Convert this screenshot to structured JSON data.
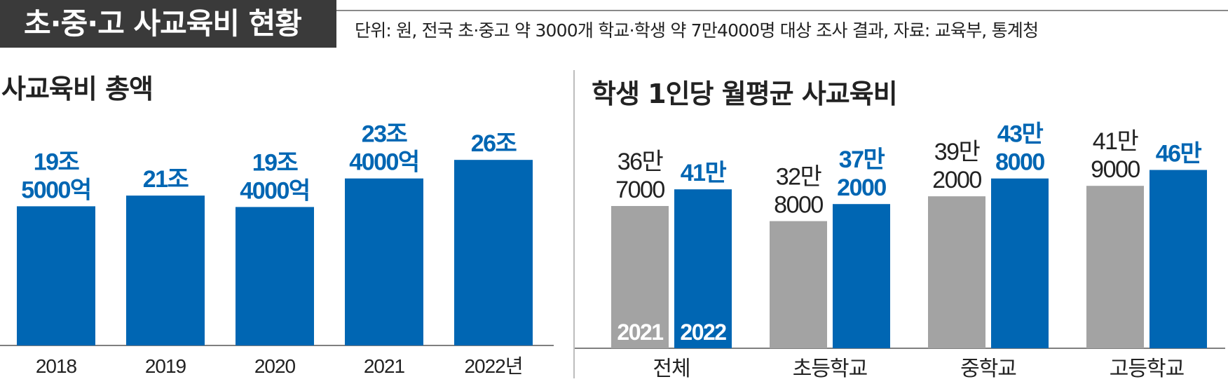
{
  "header": {
    "title": "초·중·고 사교육비 현황",
    "note": "단위: 원, 전국 초·중고 약 3000개 학교·학생 약 7만4000명 대상 조사 결과, 자료: 교육부, 통계청"
  },
  "colors": {
    "blue": "#0066b3",
    "gray": "#a3a3a3",
    "text_dark": "#222222"
  },
  "chart_data": [
    {
      "type": "bar",
      "title": "사교육비 총액",
      "categories": [
        "2018",
        "2019",
        "2020",
        "2021",
        "2022년"
      ],
      "series": [
        {
          "values": [
            195000,
            210000,
            194000,
            234000,
            260000
          ]
        }
      ],
      "data_labels": [
        [
          "19조",
          "5000억"
        ],
        [
          "21조"
        ],
        [
          "19조",
          "4000억"
        ],
        [
          "23조",
          "4000억"
        ],
        [
          "26조"
        ]
      ],
      "ylim": [
        0,
        270000
      ],
      "grid": false,
      "legend": "none"
    },
    {
      "type": "bar",
      "title": "학생 1인당 월평균 사교육비",
      "categories": [
        "전체",
        "초등학교",
        "중학교",
        "고등학교"
      ],
      "series": [
        {
          "name": "2021",
          "color": "#a3a3a3",
          "values": [
            367000,
            328000,
            392000,
            419000
          ],
          "labels": [
            [
              "36만",
              "7000"
            ],
            [
              "32만",
              "8000"
            ],
            [
              "39만",
              "2000"
            ],
            [
              "41만",
              "9000"
            ]
          ]
        },
        {
          "name": "2022",
          "color": "#0066b3",
          "values": [
            410000,
            372000,
            438000,
            460000
          ],
          "labels": [
            [
              "41만"
            ],
            [
              "37만",
              "2000"
            ],
            [
              "43만",
              "8000"
            ],
            [
              "46만"
            ]
          ]
        }
      ],
      "ylim": [
        0,
        470000
      ],
      "grid": false,
      "legend": "inside-bars-bottom"
    }
  ]
}
